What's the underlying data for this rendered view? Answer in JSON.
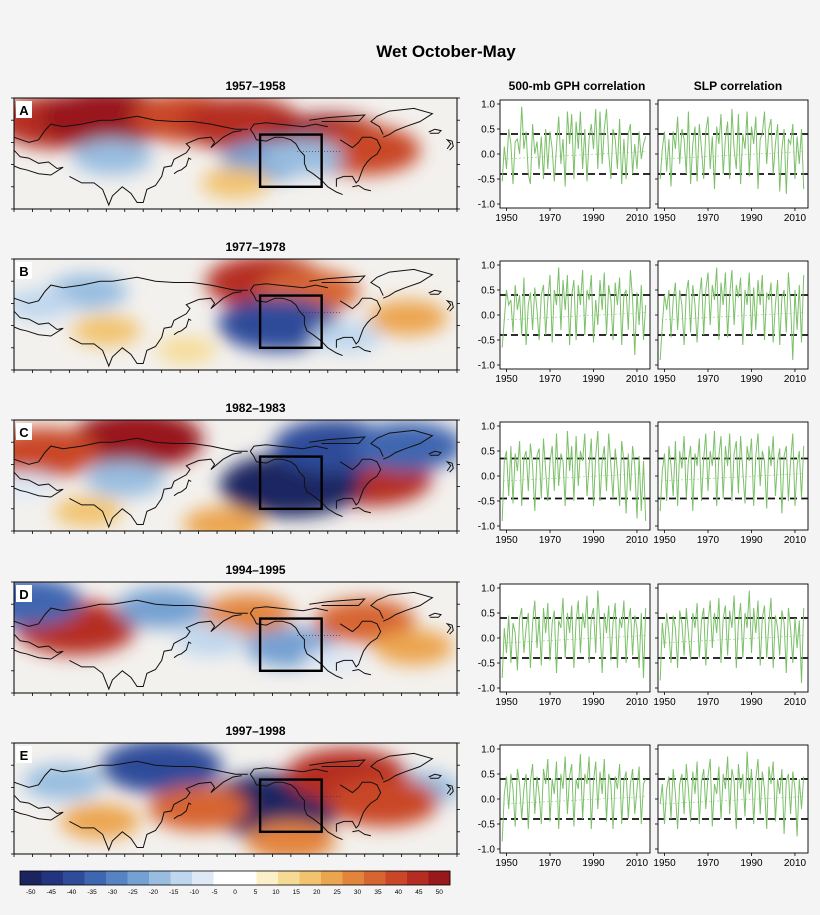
{
  "figure": {
    "title": "Wet October-May",
    "column_titles": [
      "500-mb GPH correlation",
      "SLP correlation"
    ]
  },
  "colors": {
    "line": "#7cc06a",
    "dashed": "#111111",
    "frame": "#000000",
    "land_outline": "#111111"
  },
  "colorbar": {
    "ticks": [
      -50,
      -45,
      -40,
      -35,
      -30,
      -25,
      -20,
      -15,
      -10,
      -5,
      0,
      5,
      10,
      15,
      20,
      25,
      30,
      35,
      40,
      45,
      50
    ],
    "colors": [
      "#1a2560",
      "#24357f",
      "#2e4c9a",
      "#3f66b0",
      "#5683c2",
      "#74a0d2",
      "#98bde0",
      "#bfd7ee",
      "#dfe9f6",
      "#ffffff",
      "#ffffff",
      "#fbf0c8",
      "#f6db95",
      "#f2c36e",
      "#eca54f",
      "#e3843c",
      "#d76530",
      "#c94728",
      "#b52d22",
      "#98181c"
    ]
  },
  "chart_data": [
    {
      "panel": "A",
      "period": "1957–1958",
      "type": "map",
      "anomalies": [
        {
          "lon": 35,
          "lat": 72,
          "value": 40
        },
        {
          "lon": 75,
          "lat": 75,
          "value": 45
        },
        {
          "lon": 140,
          "lat": 75,
          "value": 35
        },
        {
          "lon": 185,
          "lat": 70,
          "value": 40
        },
        {
          "lon": 255,
          "lat": 55,
          "value": 45
        },
        {
          "lon": 285,
          "lat": 50,
          "value": 35
        },
        {
          "lon": 80,
          "lat": 45,
          "value": -20
        },
        {
          "lon": 205,
          "lat": 42,
          "value": -25
        },
        {
          "lon": 235,
          "lat": 45,
          "value": -20
        },
        {
          "lon": 180,
          "lat": 25,
          "value": 15
        }
      ]
    },
    {
      "panel": "B",
      "period": "1977–1978",
      "type": "map",
      "anomalies": [
        {
          "lon": 205,
          "lat": 72,
          "value": 40
        },
        {
          "lon": 240,
          "lat": 65,
          "value": 30
        },
        {
          "lon": 75,
          "lat": 35,
          "value": 15
        },
        {
          "lon": 320,
          "lat": 45,
          "value": 20
        },
        {
          "lon": 215,
          "lat": 40,
          "value": -40
        },
        {
          "lon": 60,
          "lat": 65,
          "value": -20
        },
        {
          "lon": 270,
          "lat": 30,
          "value": -15
        },
        {
          "lon": 20,
          "lat": 55,
          "value": -15
        },
        {
          "lon": 140,
          "lat": 20,
          "value": 10
        }
      ]
    },
    {
      "panel": "C",
      "period": "1982–1983",
      "type": "map",
      "anomalies": [
        {
          "lon": 100,
          "lat": 75,
          "value": 45
        },
        {
          "lon": 25,
          "lat": 65,
          "value": 35
        },
        {
          "lon": 290,
          "lat": 45,
          "value": 40
        },
        {
          "lon": 170,
          "lat": 10,
          "value": 20
        },
        {
          "lon": 60,
          "lat": 20,
          "value": 15
        },
        {
          "lon": 225,
          "lat": 40,
          "value": -50
        },
        {
          "lon": 260,
          "lat": 70,
          "value": -40
        },
        {
          "lon": 320,
          "lat": 70,
          "value": -35
        },
        {
          "lon": 90,
          "lat": 45,
          "value": -20
        },
        {
          "lon": 10,
          "lat": 40,
          "value": -10
        }
      ]
    },
    {
      "panel": "D",
      "period": "1994–1995",
      "type": "map",
      "anomalies": [
        {
          "lon": 50,
          "lat": 55,
          "value": 40
        },
        {
          "lon": 190,
          "lat": 65,
          "value": 25
        },
        {
          "lon": 285,
          "lat": 60,
          "value": 30
        },
        {
          "lon": 325,
          "lat": 40,
          "value": 20
        },
        {
          "lon": 10,
          "lat": 75,
          "value": -35
        },
        {
          "lon": 120,
          "lat": 70,
          "value": -25
        },
        {
          "lon": 225,
          "lat": 40,
          "value": -25
        },
        {
          "lon": 160,
          "lat": 45,
          "value": -15
        },
        {
          "lon": 260,
          "lat": 30,
          "value": -10
        }
      ]
    },
    {
      "panel": "E",
      "period": "1997–1998",
      "type": "map",
      "anomalies": [
        {
          "lon": 120,
          "lat": 72,
          "value": -40
        },
        {
          "lon": 210,
          "lat": 42,
          "value": -50
        },
        {
          "lon": 40,
          "lat": 60,
          "value": -20
        },
        {
          "lon": 330,
          "lat": 55,
          "value": -20
        },
        {
          "lon": 270,
          "lat": 65,
          "value": 40
        },
        {
          "lon": 150,
          "lat": 40,
          "value": 30
        },
        {
          "lon": 225,
          "lat": 15,
          "value": 25
        },
        {
          "lon": 70,
          "lat": 30,
          "value": 20
        },
        {
          "lon": 300,
          "lat": 45,
          "value": 35
        }
      ]
    },
    {
      "panel": "A",
      "variable": "500-mb GPH correlation",
      "type": "line",
      "x_start": 1948,
      "ylim": [
        -1.0,
        1.0
      ],
      "xlim": [
        1947,
        2016
      ],
      "xticks": [
        1950,
        1970,
        1990,
        2010
      ],
      "yticks": [
        1.0,
        0.5,
        0.0,
        -0.5,
        -1.0
      ],
      "thresholds": [
        0.4,
        -0.4
      ],
      "values": [
        -0.55,
        0.15,
        -0.3,
        0.5,
        0.2,
        -0.6,
        0.25,
        0.3,
        0.0,
        0.95,
        0.1,
        0.45,
        -0.4,
        -0.6,
        0.6,
        0.0,
        0.25,
        -0.3,
        0.35,
        -0.5,
        0.5,
        -0.3,
        0.45,
        0.1,
        -0.55,
        0.15,
        0.75,
        -0.2,
        0.3,
        -0.65,
        0.85,
        0.2,
        0.8,
        -0.5,
        0.65,
        0.1,
        0.85,
        -0.3,
        0.5,
        -0.55,
        0.3,
        0.6,
        0.1,
        0.9,
        -0.3,
        0.85,
        -0.2,
        0.5,
        0.9,
        0.0,
        -0.5,
        0.5,
        0.3,
        -0.3,
        0.7,
        -0.6,
        0.3,
        -0.5,
        0.4,
        0.6,
        -0.4,
        0.2,
        -0.3,
        0.45,
        -0.1,
        0.2,
        0.35
      ]
    },
    {
      "panel": "A",
      "variable": "SLP correlation",
      "type": "line",
      "x_start": 1948,
      "ylim": [
        -1.0,
        1.0
      ],
      "xlim": [
        1947,
        2016
      ],
      "xticks": [
        1950,
        1970,
        1990,
        2010
      ],
      "yticks": [
        1.0,
        0.5,
        0.0,
        -0.5,
        -1.0
      ],
      "thresholds": [
        0.4,
        -0.4
      ],
      "values": [
        -0.5,
        0.1,
        0.45,
        -0.35,
        0.3,
        -0.65,
        0.45,
        0.1,
        0.75,
        -0.2,
        0.5,
        0.3,
        -0.4,
        0.85,
        -0.6,
        0.2,
        0.55,
        -0.55,
        0.6,
        0.1,
        -0.5,
        0.45,
        0.75,
        -0.3,
        0.35,
        -0.7,
        0.55,
        0.2,
        0.8,
        -0.4,
        0.3,
        0.65,
        -0.5,
        0.9,
        0.1,
        -0.3,
        0.8,
        -0.6,
        0.4,
        0.1,
        0.85,
        -0.45,
        0.55,
        0.2,
        0.75,
        -0.7,
        0.3,
        0.4,
        0.85,
        -0.2,
        0.5,
        0.7,
        -0.4,
        0.2,
        0.6,
        -0.75,
        0.1,
        0.5,
        -0.8,
        0.3,
        0.2,
        0.6,
        -0.5,
        0.35,
        -0.2,
        0.5,
        -0.7
      ]
    },
    {
      "panel": "B",
      "variable": "500-mb GPH correlation",
      "type": "line",
      "x_start": 1948,
      "ylim": [
        -1.0,
        1.0
      ],
      "xlim": [
        1947,
        2016
      ],
      "xticks": [
        1950,
        1970,
        1990,
        2010
      ],
      "yticks": [
        1.0,
        0.5,
        0.0,
        -0.5,
        -1.0
      ],
      "thresholds": [
        0.4,
        -0.4
      ],
      "values": [
        -0.65,
        -0.1,
        0.5,
        0.2,
        0.3,
        -0.35,
        0.6,
        0.1,
        0.4,
        -0.4,
        0.75,
        -0.6,
        0.2,
        0.45,
        -0.3,
        0.55,
        0.1,
        -0.5,
        0.4,
        0.6,
        -0.4,
        0.3,
        0.8,
        -0.55,
        0.5,
        0.2,
        0.95,
        -0.3,
        0.7,
        0.1,
        0.8,
        -0.6,
        0.4,
        0.7,
        -0.5,
        0.6,
        0.2,
        0.9,
        -0.4,
        0.5,
        0.3,
        0.8,
        -0.55,
        0.3,
        -0.2,
        0.7,
        0.1,
        0.85,
        -0.4,
        0.6,
        0.3,
        -0.5,
        0.65,
        0.2,
        0.75,
        -0.6,
        0.4,
        0.5,
        -0.3,
        0.9,
        0.3,
        -0.8,
        0.45,
        -0.2,
        0.6,
        -0.5,
        0.2
      ]
    },
    {
      "panel": "B",
      "variable": "SLP correlation",
      "type": "line",
      "x_start": 1948,
      "ylim": [
        -1.0,
        1.0
      ],
      "xlim": [
        1947,
        2016
      ],
      "xticks": [
        1950,
        1970,
        1990,
        2010
      ],
      "yticks": [
        1.0,
        0.5,
        0.0,
        -0.5,
        -1.0
      ],
      "thresholds": [
        0.4,
        -0.4
      ],
      "values": [
        -0.9,
        -0.2,
        0.4,
        0.1,
        0.5,
        -0.45,
        0.3,
        0.65,
        -0.3,
        0.5,
        0.2,
        -0.6,
        0.45,
        0.7,
        -0.35,
        0.6,
        0.2,
        -0.55,
        0.35,
        0.75,
        -0.4,
        0.5,
        0.85,
        -0.2,
        0.6,
        0.3,
        0.95,
        -0.5,
        0.65,
        0.2,
        0.85,
        -0.45,
        0.4,
        0.9,
        -0.2,
        0.6,
        0.35,
        0.75,
        -0.6,
        0.5,
        0.2,
        0.85,
        -0.4,
        0.55,
        -0.3,
        0.7,
        0.2,
        0.8,
        -0.5,
        0.45,
        0.3,
        0.65,
        -0.55,
        0.2,
        0.7,
        -0.6,
        0.35,
        0.5,
        -0.35,
        0.85,
        0.2,
        -0.9,
        0.5,
        -0.3,
        0.6,
        -0.55,
        0.8
      ]
    },
    {
      "panel": "C",
      "variable": "500-mb GPH correlation",
      "type": "line",
      "x_start": 1948,
      "ylim": [
        -1.0,
        1.0
      ],
      "xlim": [
        1947,
        2016
      ],
      "xticks": [
        1950,
        1970,
        1990,
        2010
      ],
      "yticks": [
        1.0,
        0.5,
        0.0,
        -0.5,
        -1.0
      ],
      "thresholds": [
        0.35,
        -0.45
      ],
      "values": [
        -0.9,
        0.3,
        0.5,
        -0.4,
        0.6,
        -0.55,
        0.45,
        0.1,
        0.7,
        -0.6,
        0.35,
        0.5,
        -0.3,
        0.65,
        0.2,
        -0.7,
        0.4,
        0.55,
        -0.45,
        0.75,
        0.1,
        -0.5,
        0.3,
        0.6,
        -0.3,
        0.85,
        -0.2,
        0.45,
        0.3,
        -0.6,
        0.9,
        0.1,
        0.6,
        -0.5,
        0.8,
        -0.2,
        0.5,
        0.3,
        0.85,
        -0.4,
        0.2,
        0.75,
        -0.6,
        0.4,
        0.9,
        -0.5,
        0.3,
        0.6,
        -0.3,
        0.85,
        0.2,
        -0.45,
        0.55,
        0.1,
        -0.6,
        0.7,
        0.3,
        -0.75,
        0.45,
        -0.3,
        0.6,
        0.2,
        -0.85,
        0.4,
        -0.7,
        0.3,
        -0.9
      ]
    },
    {
      "panel": "C",
      "variable": "SLP correlation",
      "type": "line",
      "x_start": 1948,
      "ylim": [
        -1.0,
        1.0
      ],
      "xlim": [
        1947,
        2016
      ],
      "xticks": [
        1950,
        1970,
        1990,
        2010
      ],
      "yticks": [
        1.0,
        0.5,
        0.0,
        -0.5,
        -1.0
      ],
      "thresholds": [
        0.35,
        -0.45
      ],
      "values": [
        -0.7,
        0.1,
        0.45,
        -0.5,
        0.6,
        0.2,
        -0.4,
        0.7,
        -0.6,
        0.5,
        0.15,
        0.8,
        -0.45,
        0.3,
        0.6,
        -0.7,
        0.45,
        0.2,
        0.75,
        -0.5,
        0.35,
        0.85,
        -0.3,
        0.5,
        0.2,
        0.9,
        -0.6,
        0.4,
        0.8,
        -0.45,
        0.6,
        0.2,
        0.85,
        -0.5,
        0.45,
        0.7,
        -0.35,
        0.8,
        0.1,
        -0.55,
        0.6,
        0.3,
        0.75,
        -0.6,
        0.4,
        0.85,
        -0.2,
        0.5,
        0.3,
        -0.65,
        0.6,
        0.2,
        0.8,
        -0.4,
        0.3,
        0.55,
        -0.75,
        0.4,
        0.6,
        -0.5,
        0.3,
        0.85,
        -0.6,
        0.2,
        0.5,
        -0.45,
        0.6
      ]
    },
    {
      "panel": "D",
      "variable": "500-mb GPH correlation",
      "type": "line",
      "x_start": 1948,
      "ylim": [
        -1.0,
        1.0
      ],
      "xlim": [
        1947,
        2016
      ],
      "xticks": [
        1950,
        1970,
        1990,
        2010
      ],
      "yticks": [
        1.0,
        0.5,
        0.0,
        -0.5,
        -1.0
      ],
      "thresholds": [
        0.4,
        -0.4
      ],
      "values": [
        -0.8,
        0.2,
        -0.3,
        0.45,
        -0.5,
        0.3,
        0.1,
        -0.65,
        0.4,
        0.6,
        -0.3,
        0.2,
        0.5,
        -0.6,
        0.3,
        0.75,
        -0.2,
        0.4,
        -0.55,
        0.6,
        0.1,
        0.7,
        -0.45,
        0.3,
        0.55,
        -0.7,
        0.35,
        0.2,
        0.8,
        -0.4,
        0.5,
        0.1,
        0.65,
        -0.6,
        0.35,
        0.75,
        -0.3,
        0.5,
        0.2,
        0.85,
        -0.5,
        0.4,
        0.6,
        -0.3,
        0.95,
        0.2,
        -0.7,
        0.5,
        0.1,
        0.65,
        -0.45,
        0.3,
        0.7,
        -0.6,
        0.4,
        0.2,
        0.75,
        -0.5,
        0.3,
        0.6,
        -0.35,
        0.45,
        0.2,
        -0.6,
        0.5,
        -0.8,
        0.6
      ]
    },
    {
      "panel": "D",
      "variable": "SLP correlation",
      "type": "line",
      "x_start": 1948,
      "ylim": [
        -1.0,
        1.0
      ],
      "xlim": [
        1947,
        2016
      ],
      "xticks": [
        1950,
        1970,
        1990,
        2010
      ],
      "yticks": [
        1.0,
        0.5,
        0.0,
        -0.5,
        -1.0
      ],
      "thresholds": [
        0.4,
        -0.4
      ],
      "values": [
        -0.85,
        0.3,
        -0.2,
        0.5,
        0.1,
        -0.5,
        0.45,
        0.2,
        -0.6,
        0.55,
        0.3,
        -0.35,
        0.6,
        0.1,
        -0.45,
        0.5,
        0.2,
        0.7,
        -0.4,
        0.35,
        0.6,
        -0.55,
        0.3,
        0.75,
        -0.2,
        0.5,
        0.1,
        0.8,
        -0.5,
        0.4,
        0.65,
        -0.35,
        0.55,
        0.2,
        0.85,
        -0.6,
        0.3,
        0.7,
        -0.4,
        0.5,
        0.2,
        0.95,
        -0.3,
        0.6,
        0.1,
        0.75,
        -0.55,
        0.4,
        0.65,
        -0.4,
        0.3,
        0.8,
        -0.6,
        0.45,
        0.2,
        -0.35,
        0.55,
        0.3,
        -0.7,
        0.6,
        0.2,
        -0.5,
        0.4,
        -0.2,
        0.35,
        -0.9,
        0.6
      ]
    },
    {
      "panel": "E",
      "variable": "500-mb GPH correlation",
      "type": "line",
      "x_start": 1948,
      "ylim": [
        -1.0,
        1.0
      ],
      "xlim": [
        1947,
        2016
      ],
      "xticks": [
        1950,
        1970,
        1990,
        2010
      ],
      "yticks": [
        1.0,
        0.5,
        0.0,
        -0.5,
        -1.0
      ],
      "thresholds": [
        0.4,
        -0.4
      ],
      "values": [
        -0.85,
        0.1,
        0.45,
        -0.2,
        0.5,
        0.2,
        -0.55,
        0.6,
        0.3,
        -0.4,
        0.2,
        0.5,
        -0.6,
        0.35,
        0.7,
        -0.3,
        0.45,
        0.1,
        -0.5,
        0.6,
        0.3,
        0.8,
        -0.45,
        0.4,
        0.1,
        0.75,
        -0.6,
        0.5,
        0.2,
        0.85,
        -0.3,
        0.45,
        0.7,
        -0.55,
        0.4,
        0.2,
        0.9,
        -0.4,
        0.5,
        0.3,
        0.85,
        -0.6,
        0.35,
        0.75,
        -0.2,
        0.55,
        0.1,
        0.8,
        -0.45,
        0.5,
        0.3,
        -0.6,
        0.45,
        0.2,
        0.7,
        -0.5,
        0.35,
        0.55,
        -0.4,
        0.3,
        0.6,
        -0.3,
        0.2,
        0.65,
        -0.5,
        0.3,
        0.4
      ]
    },
    {
      "panel": "E",
      "variable": "SLP correlation",
      "type": "line",
      "x_start": 1948,
      "ylim": [
        -1.0,
        1.0
      ],
      "xlim": [
        1947,
        2016
      ],
      "xticks": [
        1950,
        1970,
        1990,
        2010
      ],
      "yticks": [
        1.0,
        0.5,
        0.0,
        -0.5,
        -1.0
      ],
      "thresholds": [
        0.4,
        -0.4
      ],
      "values": [
        -0.1,
        0.3,
        -0.5,
        0.2,
        0.45,
        -0.4,
        0.6,
        0.1,
        -0.6,
        0.3,
        0.5,
        -0.3,
        0.7,
        0.2,
        -0.45,
        0.55,
        0.1,
        0.75,
        -0.5,
        0.35,
        0.6,
        -0.2,
        0.45,
        0.8,
        -0.55,
        0.3,
        0.1,
        0.65,
        -0.4,
        0.5,
        0.2,
        0.85,
        -0.3,
        0.6,
        0.35,
        -0.6,
        0.7,
        0.2,
        0.5,
        -0.35,
        0.95,
        0.1,
        0.6,
        -0.5,
        0.4,
        0.8,
        -0.3,
        0.55,
        0.2,
        -0.6,
        0.65,
        0.3,
        0.75,
        -0.45,
        0.4,
        0.1,
        0.6,
        -0.7,
        0.35,
        0.5,
        -0.3,
        0.55,
        0.2,
        -0.75,
        0.4,
        -0.2,
        0.45
      ]
    }
  ]
}
